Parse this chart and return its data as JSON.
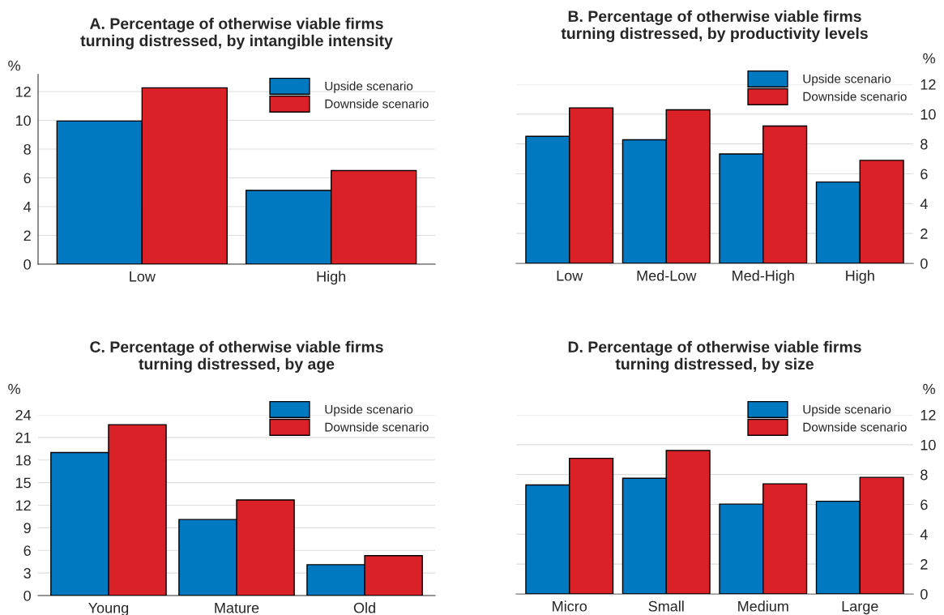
{
  "chart_data": [
    {
      "type": "bar",
      "title": "A. Percentage of otherwise viable firms\nturning distressed, by intangible intensity",
      "ylabel": "%",
      "categories": [
        "Low",
        "High"
      ],
      "series": [
        {
          "name": "Upside scenario",
          "color": "#0079c1",
          "values": [
            9.95,
            5.13
          ]
        },
        {
          "name": "Downside scenario",
          "color": "#da2128",
          "values": [
            12.26,
            6.51
          ]
        }
      ],
      "ylim": [
        0,
        13.2
      ],
      "yticks": [
        0,
        2,
        4,
        6,
        8,
        10,
        12
      ],
      "grid": "y",
      "legend": "top right"
    },
    {
      "type": "bar",
      "title": "B. Percentage of otherwise viable firms\nturning distressed, by productivity levels",
      "y2label": "%",
      "categories": [
        "Low",
        "Med-Low",
        "Med-High",
        "High"
      ],
      "series": [
        {
          "name": "Upside scenario",
          "color": "#0079c1",
          "values": [
            8.51,
            8.28,
            7.33,
            5.45
          ],
          "axis": "y2"
        },
        {
          "name": "Downside scenario",
          "color": "#da2128",
          "values": [
            10.42,
            10.29,
            9.2,
            6.9
          ],
          "axis": "y2"
        }
      ],
      "y2lim": [
        0,
        12
      ],
      "y2ticks": [
        0,
        2,
        4,
        6,
        8,
        10,
        12
      ],
      "grid": "y",
      "legend": "top right"
    },
    {
      "type": "bar",
      "title": "C. Percentage of otherwise viable firms\nturning distressed, by age",
      "ylabel": "%",
      "categories": [
        "Young",
        "Mature",
        "Old"
      ],
      "series": [
        {
          "name": "Upside scenario",
          "color": "#0079c1",
          "values": [
            19.0,
            10.1,
            4.1
          ]
        },
        {
          "name": "Downside scenario",
          "color": "#da2128",
          "values": [
            22.7,
            12.7,
            5.3
          ]
        }
      ],
      "ylim": [
        0,
        24
      ],
      "yticks": [
        0,
        3,
        6,
        9,
        12,
        15,
        18,
        21,
        24
      ],
      "grid": "y",
      "legend": "top right"
    },
    {
      "type": "bar",
      "title": "D. Percentage of otherwise viable firms\nturning distressed, by size",
      "y2label": "%",
      "categories": [
        "Micro",
        "Small",
        "Medium",
        "Large"
      ],
      "series": [
        {
          "name": "Upside scenario",
          "color": "#0079c1",
          "values": [
            7.3,
            7.75,
            6.02,
            6.21
          ],
          "axis": "y2"
        },
        {
          "name": "Downside scenario",
          "color": "#da2128",
          "values": [
            9.09,
            9.61,
            7.38,
            7.81
          ],
          "axis": "y2"
        }
      ],
      "y2lim": [
        0,
        12
      ],
      "y2ticks": [
        0,
        2,
        4,
        6,
        8,
        10,
        12
      ],
      "grid": "y",
      "legend": "top right"
    }
  ]
}
